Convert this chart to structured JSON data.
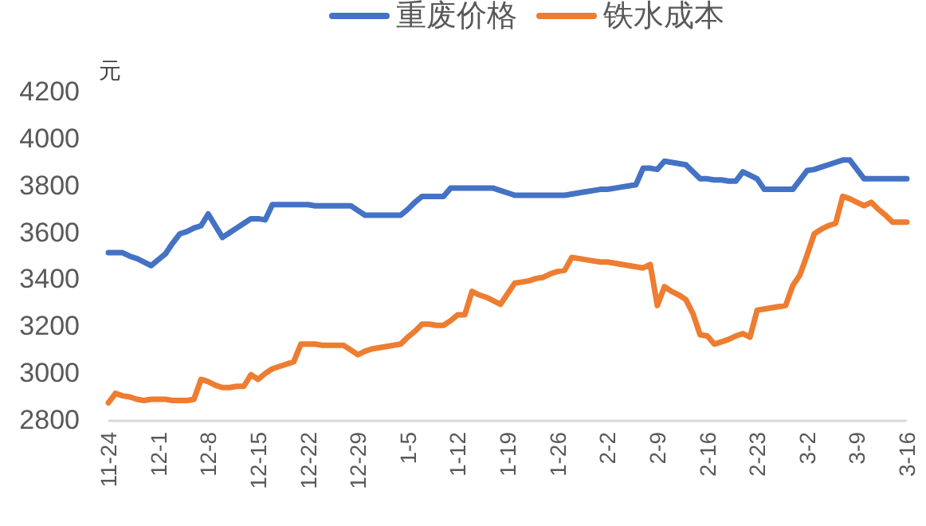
{
  "chart_data": {
    "type": "line",
    "ylabel": "元",
    "legend": "top",
    "marker": "none",
    "line_style": "solid",
    "grid": false,
    "categories": [
      "11-24",
      null,
      null,
      null,
      null,
      null,
      null,
      "12-1",
      null,
      null,
      null,
      null,
      null,
      null,
      "12-8",
      null,
      null,
      null,
      null,
      null,
      null,
      "12-15",
      null,
      null,
      null,
      null,
      null,
      null,
      "12-22",
      null,
      null,
      null,
      null,
      null,
      null,
      "12-29",
      null,
      null,
      null,
      null,
      null,
      null,
      "1-5",
      null,
      null,
      null,
      null,
      null,
      null,
      "1-12",
      null,
      null,
      null,
      null,
      null,
      null,
      "1-19",
      null,
      null,
      null,
      null,
      null,
      null,
      "1-26",
      null,
      null,
      null,
      null,
      null,
      null,
      "2-2",
      null,
      null,
      null,
      null,
      null,
      null,
      "2-9",
      null,
      null,
      null,
      null,
      null,
      null,
      "2-16",
      null,
      null,
      null,
      null,
      null,
      null,
      "2-23",
      null,
      null,
      null,
      null,
      null,
      null,
      "3-2",
      null,
      null,
      null,
      null,
      null,
      null,
      "3-9",
      null,
      null,
      null,
      null,
      null,
      null,
      "3-16"
    ],
    "ylim": [
      2800,
      4200
    ],
    "yticks": [
      2800,
      3000,
      3200,
      3400,
      3600,
      3800,
      4000,
      4200
    ],
    "series": [
      {
        "name": "重废价格",
        "color": "#4472c4",
        "values": [
          3510,
          3510,
          3510,
          3495,
          3485,
          3470,
          3455,
          3480,
          3505,
          3550,
          3590,
          3600,
          3615,
          3625,
          3675,
          3625,
          3575,
          3595,
          3615,
          3635,
          3655,
          3655,
          3650,
          3715,
          3715,
          3715,
          3715,
          3715,
          3715,
          3710,
          3710,
          3710,
          3710,
          3710,
          3710,
          3690,
          3670,
          3670,
          3670,
          3670,
          3670,
          3670,
          3695,
          3725,
          3750,
          3750,
          3750,
          3750,
          3785,
          3785,
          3785,
          3785,
          3785,
          3785,
          3785,
          3775,
          3765,
          3755,
          3755,
          3755,
          3755,
          3755,
          3755,
          3755,
          3755,
          3760,
          3765,
          3770,
          3775,
          3780,
          3780,
          3785,
          3790,
          3795,
          3800,
          3870,
          3870,
          3865,
          3900,
          3895,
          3890,
          3885,
          3855,
          3825,
          3825,
          3820,
          3820,
          3815,
          3815,
          3855,
          3840,
          3825,
          3780,
          3780,
          3780,
          3780,
          3780,
          3820,
          3860,
          3865,
          3875,
          3885,
          3895,
          3905,
          3905,
          3865,
          3825,
          3825,
          3825,
          3825,
          3825,
          3825,
          3825
        ]
      },
      {
        "name": "铁水成本",
        "color": "#ed7d31",
        "values": [
          2870,
          2910,
          2900,
          2895,
          2885,
          2880,
          2885,
          2885,
          2885,
          2880,
          2880,
          2880,
          2885,
          2970,
          2960,
          2945,
          2935,
          2935,
          2940,
          2940,
          2990,
          2970,
          2995,
          3015,
          3025,
          3035,
          3045,
          3120,
          3120,
          3120,
          3115,
          3115,
          3115,
          3115,
          3095,
          3075,
          3090,
          3100,
          3105,
          3110,
          3115,
          3120,
          3150,
          3175,
          3205,
          3205,
          3200,
          3200,
          3220,
          3245,
          3245,
          3345,
          3330,
          3320,
          3305,
          3290,
          3335,
          3380,
          3385,
          3390,
          3400,
          3405,
          3420,
          3430,
          3435,
          3490,
          3485,
          3480,
          3475,
          3470,
          3470,
          3465,
          3460,
          3455,
          3450,
          3445,
          3460,
          3285,
          3365,
          3345,
          3330,
          3310,
          3250,
          3160,
          3155,
          3120,
          3130,
          3140,
          3155,
          3165,
          3150,
          3265,
          3270,
          3275,
          3280,
          3285,
          3370,
          3415,
          3500,
          3590,
          3610,
          3625,
          3635,
          3750,
          3740,
          3725,
          3710,
          3725,
          3695,
          3670,
          3640,
          3640,
          3640
        ]
      }
    ]
  }
}
